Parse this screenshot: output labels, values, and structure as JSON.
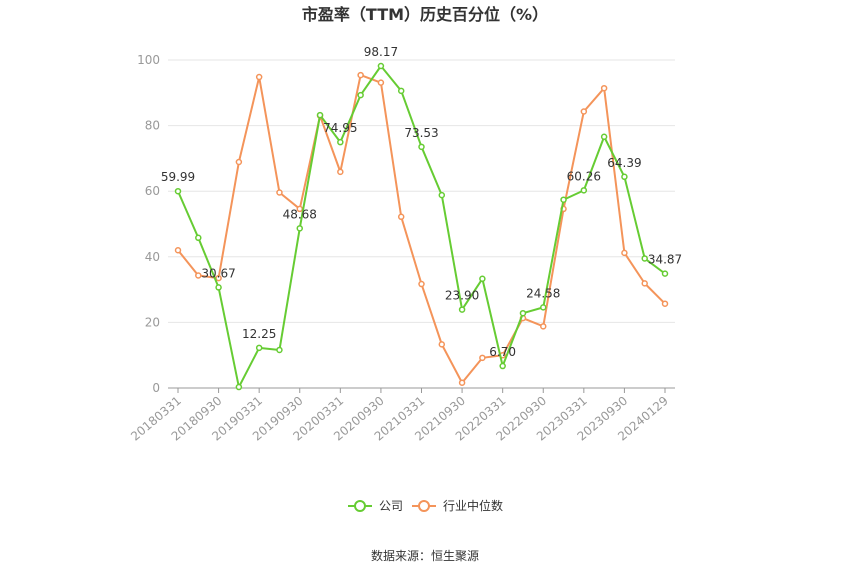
{
  "chart_data": {
    "type": "line",
    "title": "市盈率（TTM）历史百分位（%）",
    "source": "数据来源：恒生聚源",
    "ylim": [
      0,
      100
    ],
    "yticks": [
      0,
      20,
      40,
      60,
      80,
      100
    ],
    "grid": true,
    "legend_position": "bottom-center",
    "x_tick_labels": [
      "20180331",
      "20180930",
      "20190331",
      "20190930",
      "20200331",
      "20200930",
      "20210331",
      "20210930",
      "20220331",
      "20220930",
      "20230331",
      "20230930",
      "20240129"
    ],
    "x": [
      "20180331",
      "20180630",
      "20180930",
      "20181231",
      "20190331",
      "20190630",
      "20190930",
      "20191231",
      "20200331",
      "20200630",
      "20200930",
      "20201231",
      "20210331",
      "20210630",
      "20210930",
      "20211231",
      "20220331",
      "20220630",
      "20220930",
      "20221231",
      "20230331",
      "20230630",
      "20230930",
      "20231231",
      "20240129"
    ],
    "series": [
      {
        "name": "公司",
        "color": "#66cc33",
        "values": [
          59.99,
          45.8,
          30.67,
          0.3,
          12.25,
          11.6,
          48.68,
          83.2,
          74.95,
          89.3,
          98.17,
          90.6,
          73.53,
          58.8,
          23.9,
          33.3,
          6.7,
          22.8,
          24.58,
          57.4,
          60.26,
          76.6,
          64.39,
          39.5,
          34.87
        ]
      },
      {
        "name": "行业中位数",
        "color": "#f4945a",
        "values": [
          42.0,
          34.3,
          33.5,
          68.9,
          94.8,
          59.6,
          54.6,
          83.0,
          65.9,
          95.4,
          93.1,
          52.2,
          31.7,
          13.3,
          1.6,
          9.2,
          10.0,
          21.3,
          18.8,
          54.6,
          84.3,
          91.4,
          41.2,
          31.9,
          25.7
        ]
      }
    ],
    "data_labels": [
      {
        "series": 0,
        "index": 0,
        "text": "59.99"
      },
      {
        "series": 0,
        "index": 2,
        "text": "30.67"
      },
      {
        "series": 0,
        "index": 4,
        "text": "12.25"
      },
      {
        "series": 0,
        "index": 6,
        "text": "48.68"
      },
      {
        "series": 0,
        "index": 8,
        "text": "74.95"
      },
      {
        "series": 0,
        "index": 10,
        "text": "98.17"
      },
      {
        "series": 0,
        "index": 12,
        "text": "73.53"
      },
      {
        "series": 0,
        "index": 14,
        "text": "23.90"
      },
      {
        "series": 0,
        "index": 16,
        "text": "6.70"
      },
      {
        "series": 0,
        "index": 18,
        "text": "24.58"
      },
      {
        "series": 0,
        "index": 20,
        "text": "60.26"
      },
      {
        "series": 0,
        "index": 22,
        "text": "64.39"
      },
      {
        "series": 0,
        "index": 24,
        "text": "34.87"
      }
    ]
  }
}
